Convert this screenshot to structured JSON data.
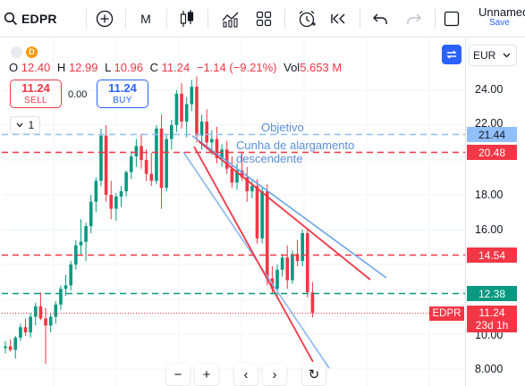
{
  "toolbar": {
    "symbol": "EDPR",
    "interval": "M",
    "layout_name": "Unnamed",
    "save_label": "Save"
  },
  "legend": {
    "o_label": "O",
    "o_value": "12.40",
    "h_label": "H",
    "h_value": "12.99",
    "l_label": "L",
    "l_value": "10.96",
    "c_label": "C",
    "c_value": "11.24",
    "change": "−1.14 (−9.21%)",
    "vol_label": "Vol",
    "vol_value": "5.653 M",
    "badge_d": "D"
  },
  "trading": {
    "sell_price": "11.24",
    "sell_label": "SELL",
    "buy_price": "11.24",
    "buy_label": "BUY",
    "spread": "0.00",
    "qty": "1"
  },
  "currency": "EUR",
  "price_axis": {
    "ticks": [
      "24.00",
      "22.00",
      "18.00",
      "16.00",
      "10.00",
      "8.000"
    ],
    "levels": [
      {
        "label": "21.44",
        "color": "#90bff9",
        "text_color": "#131722"
      },
      {
        "label": "20.48",
        "color": "#f23645",
        "text_color": "#ffffff"
      },
      {
        "label": "14.54",
        "color": "#f23645",
        "text_color": "#ffffff"
      },
      {
        "label": "12.38",
        "color": "#089981",
        "text_color": "#ffffff"
      }
    ],
    "last_price": "11.24",
    "countdown": "23d 1h",
    "symbol_tag": "EDPR"
  },
  "annotations": {
    "objetivo": "Objetivo",
    "wedge_line1": "Cunha de alargamento",
    "wedge_line2": "descendente"
  },
  "colors": {
    "up": "#089981",
    "down": "#f23645",
    "accent": "#2962ff"
  },
  "nav": {
    "zoom_out": "−",
    "zoom_in": "+",
    "scroll_left": "‹",
    "scroll_right": "›",
    "reset": "↻"
  }
}
